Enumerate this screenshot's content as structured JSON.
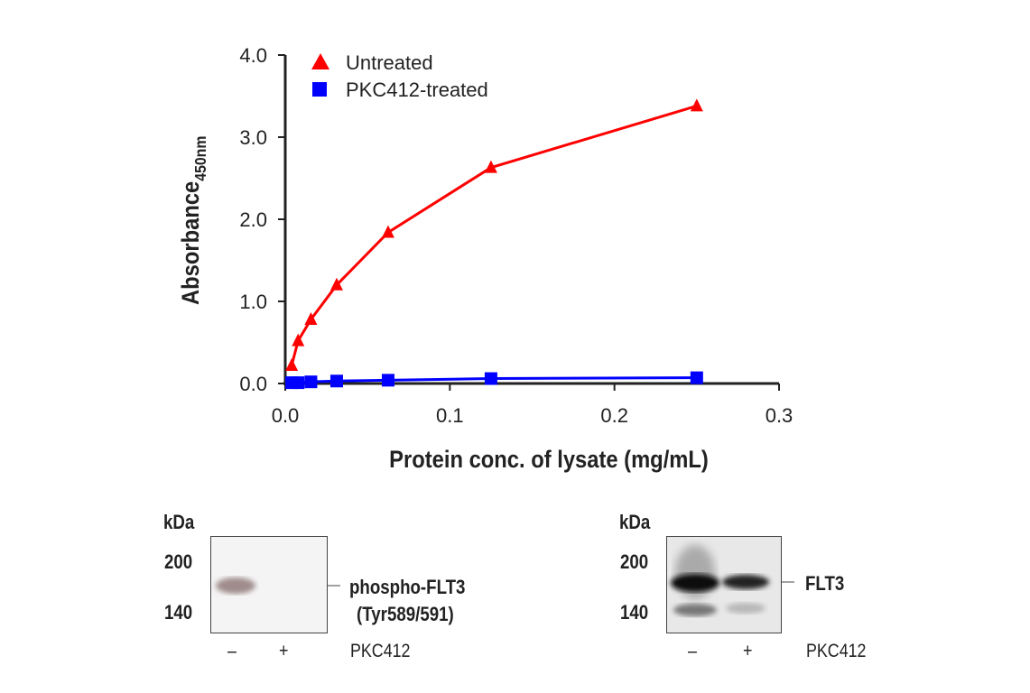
{
  "chart_data": {
    "type": "line",
    "xlabel": "Protein conc. of lysate (mg/mL)",
    "ylabel": "Absorbance",
    "ylabel_sub": "450nm",
    "xlim": [
      0,
      0.3
    ],
    "ylim": [
      0,
      4.0
    ],
    "xticks": [
      "0.0",
      "0.1",
      "0.2",
      "0.3"
    ],
    "yticks": [
      "0.0",
      "1.0",
      "2.0",
      "3.0",
      "4.0"
    ],
    "grid": false,
    "legend_position": "top-left",
    "x": [
      0.0039,
      0.0078,
      0.0156,
      0.03125,
      0.0625,
      0.125,
      0.25
    ],
    "series": [
      {
        "name": "Untreated",
        "color": "#ff0000",
        "marker": "triangle",
        "values": [
          0.22,
          0.52,
          0.78,
          1.2,
          1.84,
          2.63,
          3.38
        ]
      },
      {
        "name": "PKC412-treated",
        "color": "#0000ff",
        "marker": "square",
        "values": [
          0.01,
          0.01,
          0.02,
          0.03,
          0.04,
          0.06,
          0.07
        ]
      }
    ]
  },
  "blot_left": {
    "kda": "kDa",
    "m1": "200",
    "m2": "140",
    "label1": "phospho-FLT3",
    "label2": "(Tyr589/591)",
    "lane1": "–",
    "lane2": "+",
    "treatment": "PKC412"
  },
  "blot_right": {
    "kda": "kDa",
    "m1": "200",
    "m2": "140",
    "label1": "FLT3",
    "lane1": "–",
    "lane2": "+",
    "treatment": "PKC412"
  }
}
